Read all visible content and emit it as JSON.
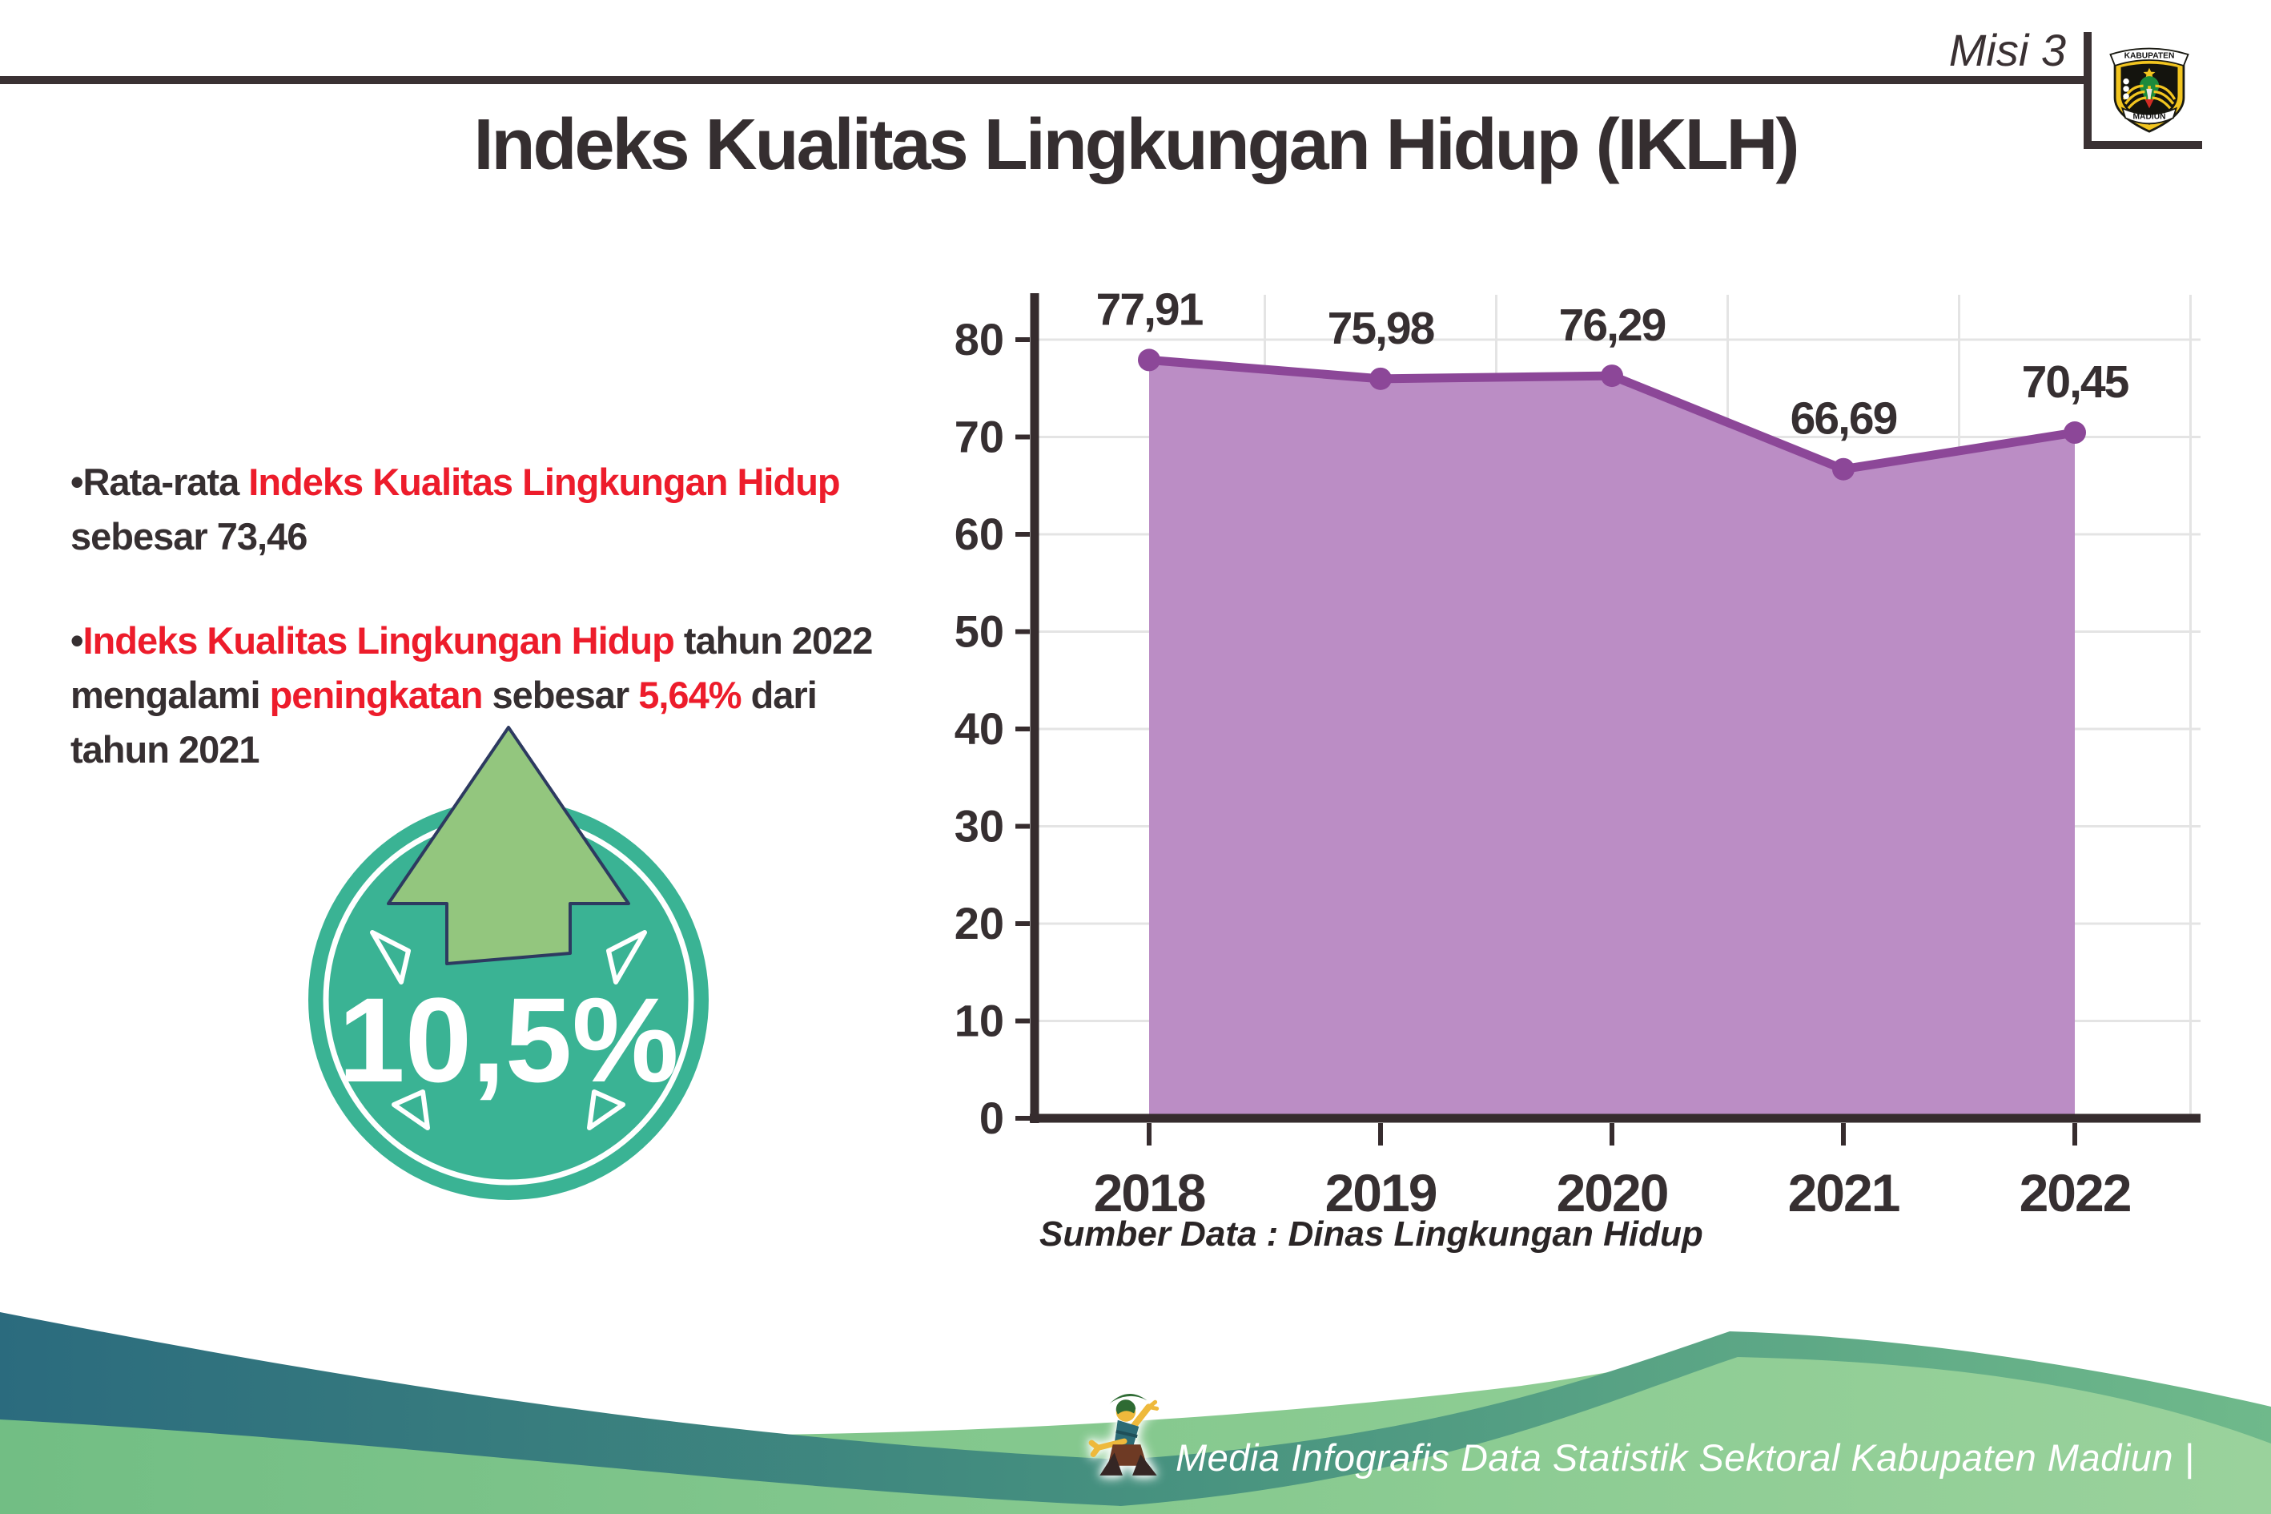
{
  "header": {
    "misi_label": "Misi 3",
    "title": "Indeks Kualitas Lingkungan Hidup (IKLH)",
    "logo": {
      "top_text": "KABUPATEN",
      "bottom_text": "MADIUN"
    }
  },
  "bullets": [
    {
      "segments": [
        {
          "text": "Rata-rata ",
          "style": "dark"
        },
        {
          "text": "Indeks Kualitas Lingkungan Hidup",
          "style": "red"
        },
        {
          "text": "sebesar 73,46",
          "style": "dark",
          "newline_before": true
        }
      ]
    },
    {
      "segments": [
        {
          "text": "Indeks Kualitas Lingkungan Hidup",
          "style": "red"
        },
        {
          "text": " tahun 2022",
          "style": "dark"
        },
        {
          "text": "mengalami ",
          "style": "dark",
          "newline_before": true
        },
        {
          "text": "peningkatan",
          "style": "red"
        },
        {
          "text": " sebesar ",
          "style": "dark"
        },
        {
          "text": "5,64%",
          "style": "red"
        },
        {
          "text": " dari",
          "style": "dark"
        },
        {
          "text": "tahun 2021",
          "style": "dark",
          "newline_before": true
        }
      ]
    }
  ],
  "badge": {
    "value": "10,5%",
    "icon": "up-arrow-icon",
    "circle_color": "#3ab394",
    "arrow_color": "#93c67e"
  },
  "chart_data": {
    "type": "area",
    "title": "",
    "categories": [
      "2018",
      "2019",
      "2020",
      "2021",
      "2022"
    ],
    "values": [
      77.91,
      75.98,
      76.29,
      66.69,
      70.45
    ],
    "value_labels": [
      "77,91",
      "75,98",
      "76,29",
      "66,69",
      "70,45"
    ],
    "ylim": [
      0,
      80
    ],
    "yticks": [
      0,
      10,
      20,
      30,
      40,
      50,
      60,
      70,
      80
    ],
    "grid": true,
    "legend_position": "none",
    "area_color": "#bb8dc5",
    "line_color": "#8c4798",
    "marker_color": "#8c4798",
    "axis_color": "#362c2e",
    "gridline_color": "#e4e4e4",
    "label_color": "#362f31",
    "source_note": "Sumber Data : Dinas Lingkungan Hidup"
  },
  "footer": {
    "caption": "Media Infografis Data Statistik Sektoral Kabupaten Madiun |"
  }
}
